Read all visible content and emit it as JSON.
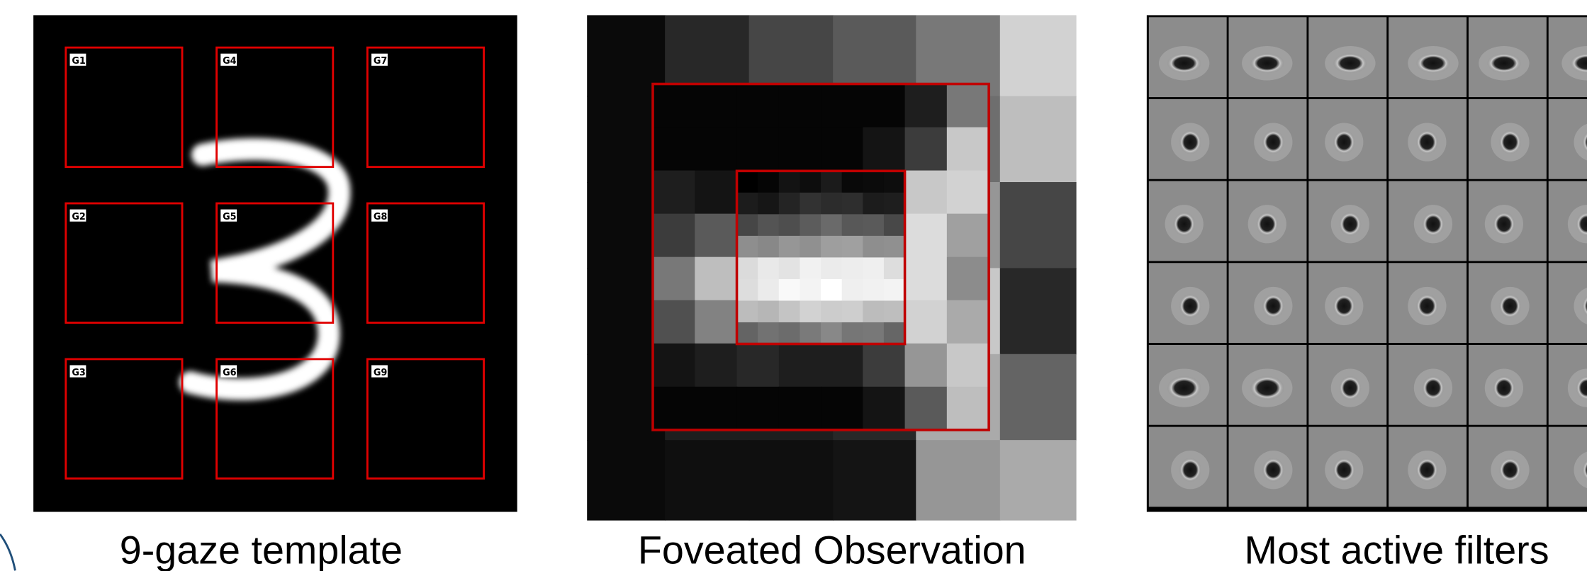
{
  "panels": [
    {
      "caption": "9-gaze template",
      "gaze_labels": [
        "G1",
        "G2",
        "G3",
        "G4",
        "G5",
        "G6",
        "G7",
        "G8",
        "G9"
      ]
    },
    {
      "caption": "Foveated Observation"
    },
    {
      "caption": "Most active filters"
    }
  ]
}
